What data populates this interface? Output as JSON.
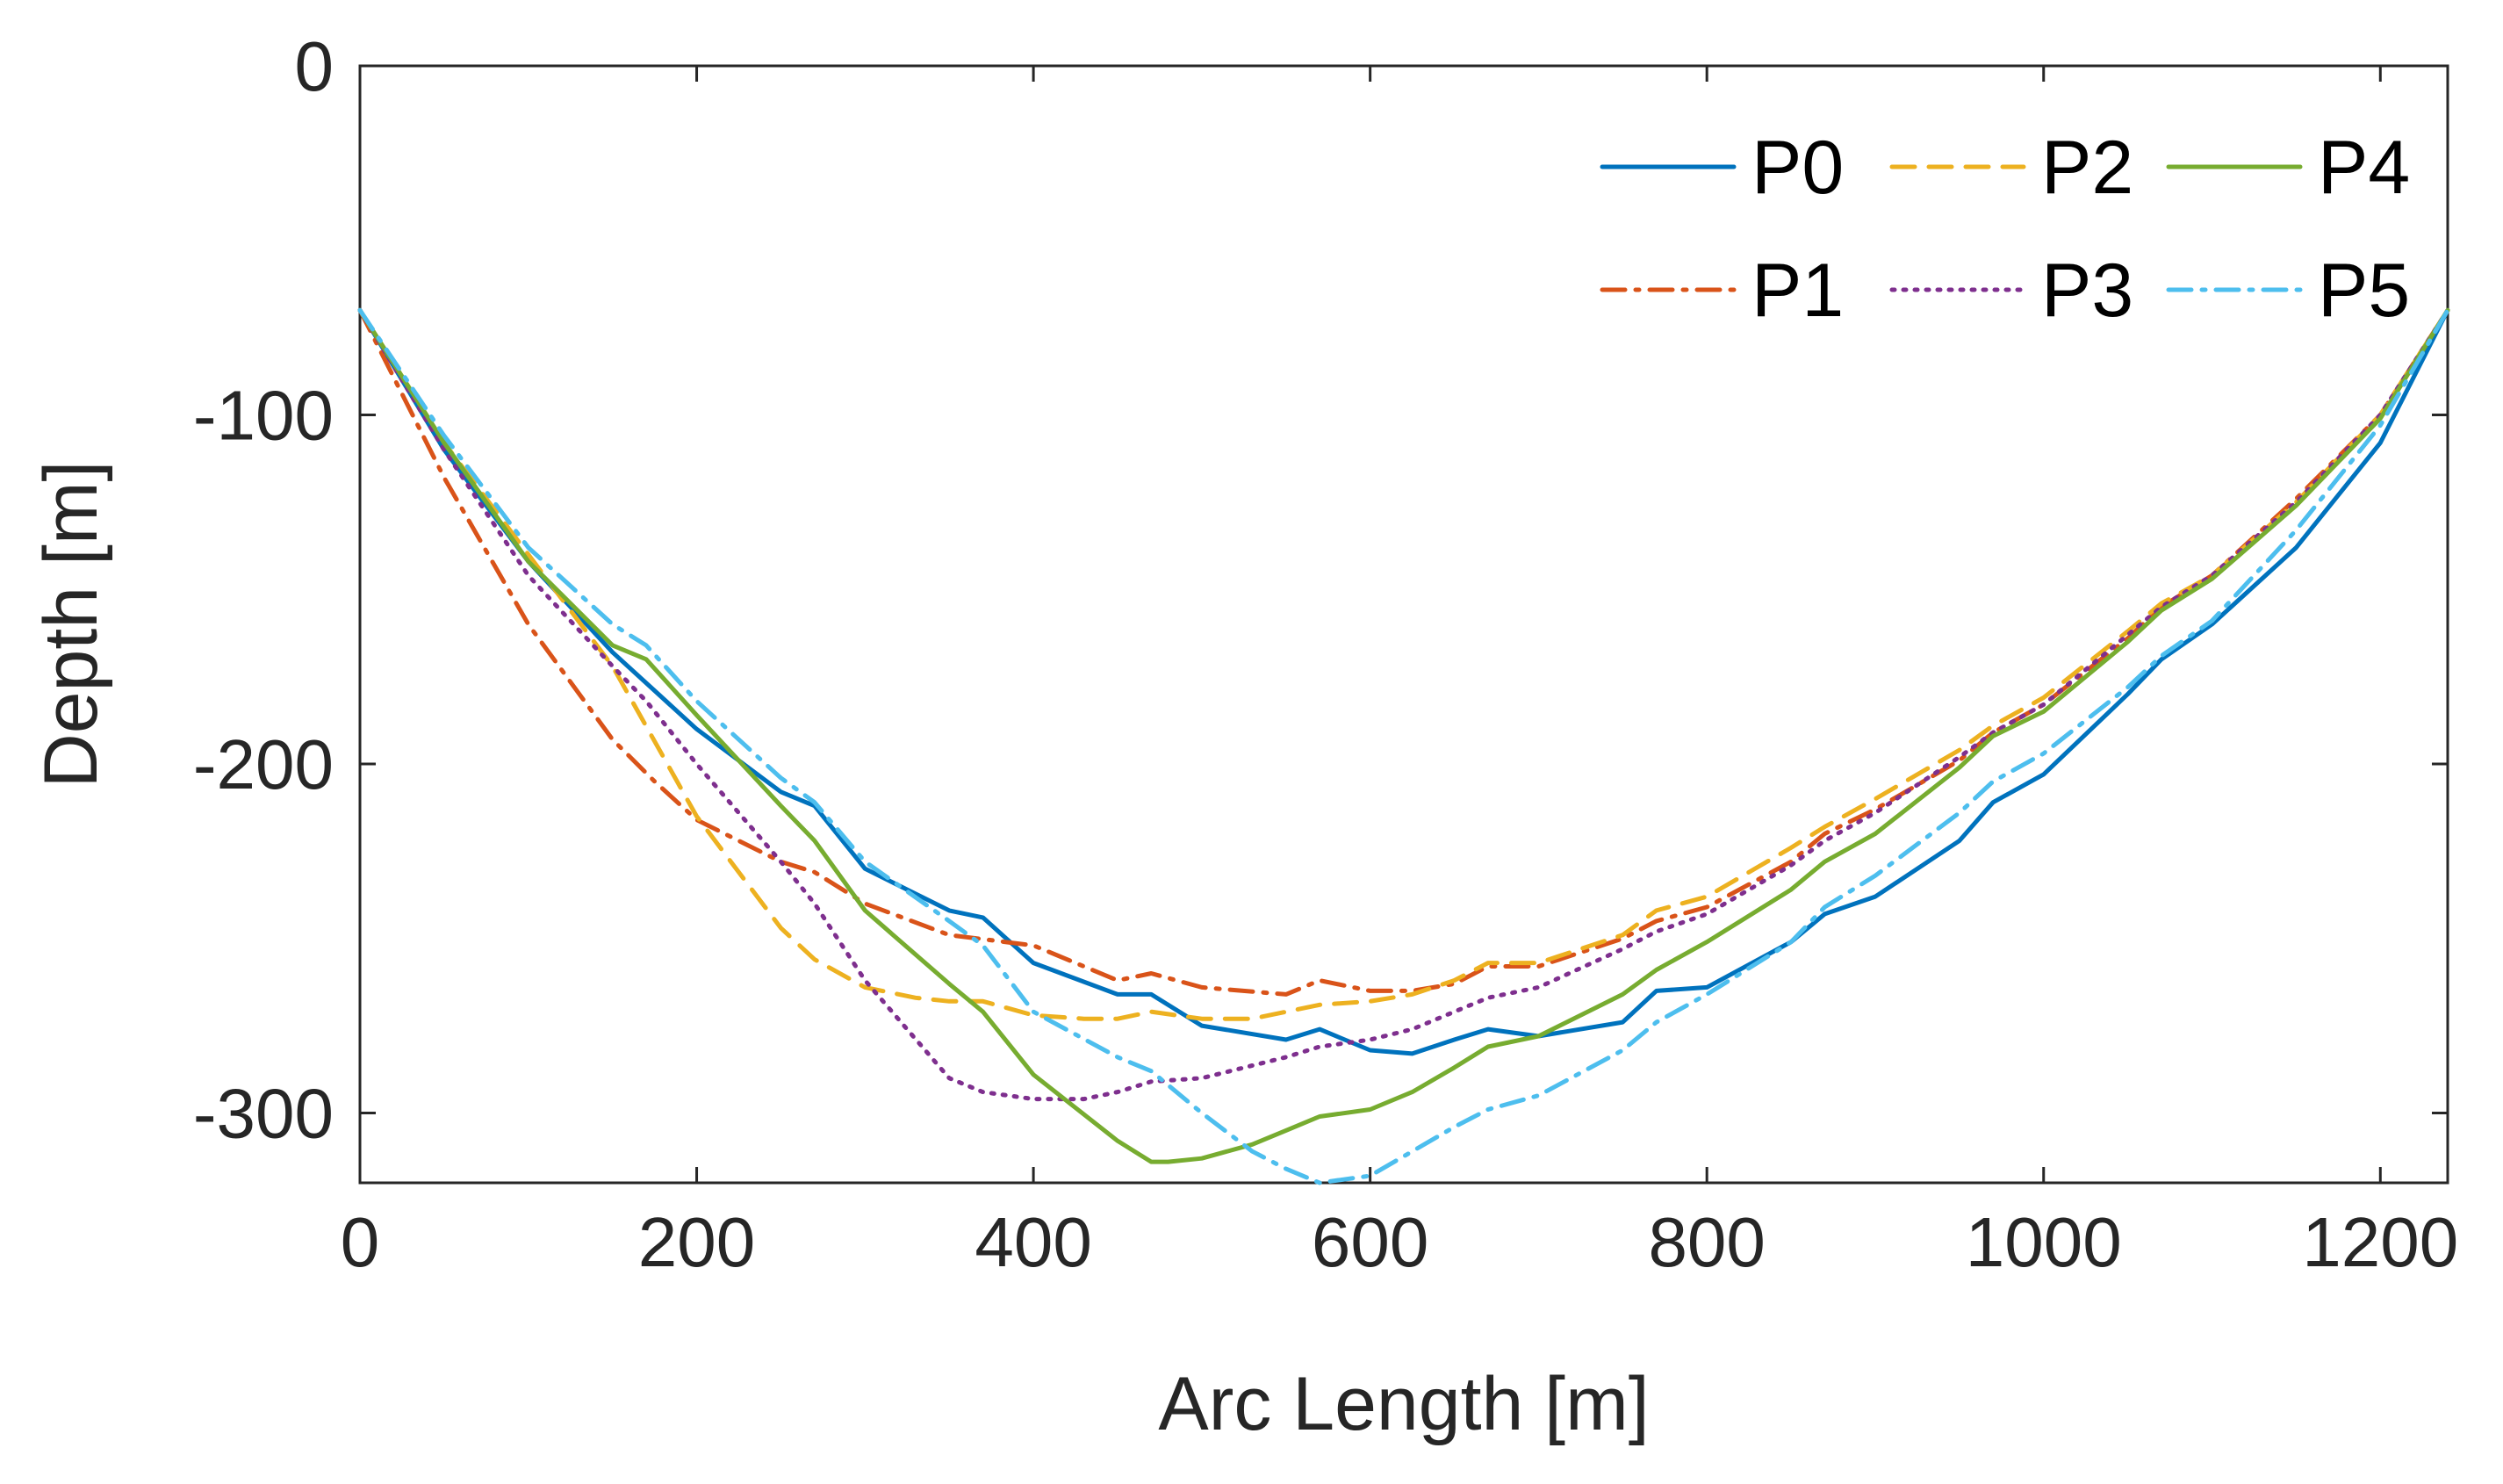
{
  "chart_data": {
    "type": "line",
    "title": "",
    "xlabel": "Arc Length [m]",
    "ylabel": "Depth [m]",
    "xlim": [
      0,
      1240
    ],
    "ylim": [
      -320,
      0
    ],
    "xticks": [
      0,
      200,
      400,
      600,
      800,
      1000,
      1200
    ],
    "yticks": [
      0,
      -100,
      -200,
      -300
    ],
    "xtick_labels": [
      "0",
      "200",
      "400",
      "600",
      "800",
      "1000",
      "1200"
    ],
    "ytick_labels": [
      "0",
      "-100",
      "-200",
      "-300"
    ],
    "grid": false,
    "legend_position": "top-right",
    "series": [
      {
        "name": "P0",
        "color": "#0072BD",
        "dash": "solid",
        "x": [
          0,
          50,
          100,
          150,
          200,
          250,
          270,
          300,
          350,
          370,
          400,
          450,
          470,
          500,
          550,
          570,
          600,
          625,
          650,
          670,
          700,
          750,
          770,
          800,
          850,
          870,
          900,
          950,
          970,
          1000,
          1050,
          1070,
          1100,
          1150,
          1200,
          1240
        ],
        "values": [
          -70,
          -110,
          -142,
          -168,
          -190,
          -208,
          -212,
          -230,
          -242,
          -244,
          -257,
          -266,
          -266,
          -275,
          -279,
          -276,
          -282,
          -283,
          -279,
          -276,
          -278,
          -274,
          -265,
          -264,
          -251,
          -243,
          -238,
          -222,
          -211,
          -203,
          -180,
          -170,
          -160,
          -138,
          -108,
          -70
        ]
      },
      {
        "name": "P1",
        "color": "#D95319",
        "dash": "dashdot",
        "x": [
          0,
          50,
          100,
          150,
          175,
          200,
          250,
          270,
          300,
          350,
          400,
          450,
          470,
          500,
          550,
          570,
          600,
          625,
          650,
          670,
          700,
          750,
          770,
          800,
          850,
          870,
          900,
          950,
          970,
          1000,
          1050,
          1070,
          1100,
          1150,
          1200,
          1240
        ],
        "values": [
          -70,
          -118,
          -160,
          -193,
          -205,
          -216,
          -228,
          -231,
          -240,
          -249,
          -252,
          -262,
          -260,
          -264,
          -266,
          -262,
          -265,
          -265,
          -263,
          -258,
          -258,
          -250,
          -245,
          -241,
          -228,
          -220,
          -213,
          -199,
          -191,
          -183,
          -164,
          -155,
          -146,
          -124,
          -100,
          -70
        ]
      },
      {
        "name": "P2",
        "color": "#EDB120",
        "dash": "dashed",
        "x": [
          0,
          50,
          100,
          150,
          200,
          250,
          270,
          300,
          330,
          350,
          370,
          400,
          430,
          450,
          470,
          500,
          530,
          570,
          600,
          625,
          650,
          670,
          700,
          750,
          770,
          800,
          850,
          870,
          900,
          950,
          970,
          1000,
          1050,
          1070,
          1100,
          1150,
          1200,
          1240
        ],
        "values": [
          -70,
          -108,
          -140,
          -172,
          -215,
          -247,
          -256,
          -264,
          -267,
          -268,
          -268,
          -272,
          -273,
          -273,
          -271,
          -273,
          -273,
          -269,
          -268,
          -266,
          -262,
          -257,
          -257,
          -249,
          -242,
          -238,
          -224,
          -218,
          -210,
          -196,
          -189,
          -181,
          -162,
          -154,
          -146,
          -125,
          -100,
          -70
        ]
      },
      {
        "name": "P3",
        "color": "#7E2F8E",
        "dash": "dotted",
        "x": [
          0,
          50,
          100,
          150,
          170,
          200,
          250,
          270,
          300,
          350,
          370,
          400,
          430,
          450,
          470,
          500,
          550,
          570,
          600,
          625,
          650,
          670,
          700,
          750,
          770,
          800,
          850,
          870,
          900,
          950,
          970,
          1000,
          1050,
          1070,
          1100,
          1150,
          1200,
          1240
        ],
        "values": [
          -70,
          -110,
          -146,
          -172,
          -182,
          -200,
          -228,
          -240,
          -262,
          -290,
          -294,
          -296,
          -296,
          -294,
          -291,
          -290,
          -284,
          -281,
          -279,
          -276,
          -271,
          -267,
          -264,
          -253,
          -248,
          -243,
          -229,
          -222,
          -214,
          -198,
          -191,
          -183,
          -163,
          -155,
          -146,
          -125,
          -100,
          -70
        ]
      },
      {
        "name": "P4",
        "color": "#77AC30",
        "dash": "solid",
        "x": [
          0,
          50,
          100,
          150,
          170,
          200,
          250,
          270,
          300,
          350,
          370,
          400,
          450,
          470,
          480,
          500,
          530,
          550,
          570,
          600,
          625,
          650,
          670,
          700,
          750,
          770,
          800,
          850,
          870,
          900,
          950,
          970,
          1000,
          1050,
          1070,
          1100,
          1150,
          1200,
          1240
        ],
        "values": [
          -70,
          -108,
          -142,
          -166,
          -170,
          -186,
          -212,
          -222,
          -242,
          -263,
          -271,
          -289,
          -308,
          -314,
          -314,
          -313,
          -309,
          -305,
          -301,
          -299,
          -294,
          -287,
          -281,
          -278,
          -266,
          -259,
          -251,
          -236,
          -228,
          -220,
          -201,
          -192,
          -185,
          -165,
          -156,
          -147,
          -126,
          -101,
          -70
        ]
      },
      {
        "name": "P5",
        "color": "#4DBEEE",
        "dash": "dashdot",
        "x": [
          0,
          50,
          100,
          150,
          170,
          200,
          250,
          270,
          300,
          350,
          370,
          400,
          450,
          470,
          500,
          530,
          550,
          570,
          600,
          625,
          650,
          670,
          700,
          750,
          770,
          800,
          850,
          870,
          900,
          950,
          970,
          1000,
          1050,
          1070,
          1100,
          1150,
          1200,
          1240
        ],
        "values": [
          -70,
          -106,
          -138,
          -160,
          -166,
          -182,
          -204,
          -211,
          -228,
          -245,
          -252,
          -271,
          -284,
          -288,
          -300,
          -311,
          -316,
          -320,
          -318,
          -311,
          -304,
          -299,
          -295,
          -282,
          -274,
          -266,
          -251,
          -241,
          -232,
          -214,
          -205,
          -197,
          -178,
          -169,
          -159,
          -133,
          -103,
          -70
        ]
      }
    ]
  }
}
